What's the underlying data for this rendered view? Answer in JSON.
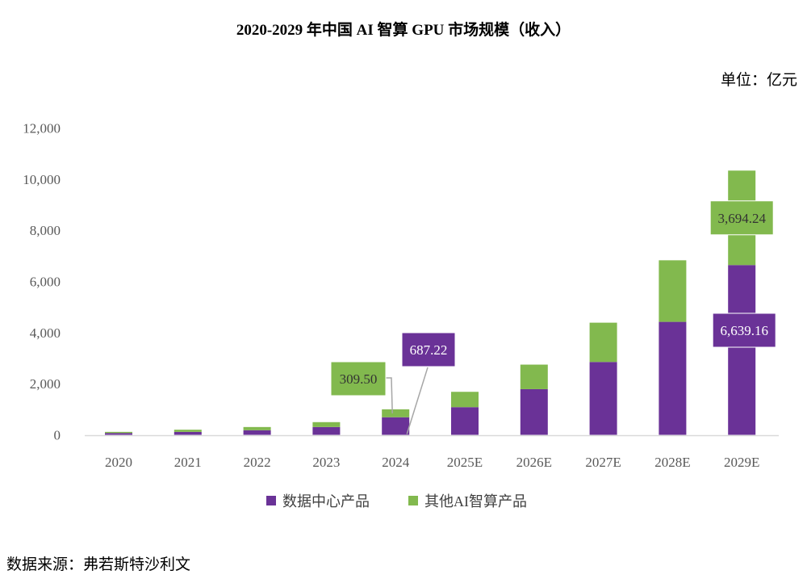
{
  "title": "2020-2029 年中国 AI 智算 GPU 市场规模（收入）",
  "unit": "单位：亿元",
  "source": "数据来源：弗若斯特沙利文",
  "chart_data": {
    "type": "bar",
    "stacked": true,
    "categories": [
      "2020",
      "2021",
      "2022",
      "2023",
      "2024",
      "2025E",
      "2026E",
      "2027E",
      "2028E",
      "2029E"
    ],
    "series": [
      {
        "name": "数据中心产品",
        "color": "#6A3297",
        "values": [
          70,
          115,
          180,
          306,
          687.22,
          1082,
          1786,
          2850,
          4418,
          6639.16
        ]
      },
      {
        "name": "其他AI智算产品",
        "color": "#82B94E",
        "values": [
          45,
          85,
          125,
          190,
          309.5,
          600,
          960,
          1536,
          2408,
          3694.24
        ]
      }
    ],
    "ylim": [
      0,
      12000
    ],
    "yticks": [
      "0",
      "2,000",
      "4,000",
      "6,000",
      "8,000",
      "10,000",
      "12,000"
    ],
    "grid": false,
    "legend": "bottom",
    "data_labels": [
      {
        "category": "2024",
        "series": 1,
        "text": "309.50"
      },
      {
        "category": "2024",
        "series": 0,
        "text": "687.22"
      },
      {
        "category": "2029E",
        "series": 1,
        "text": "3,694.24"
      },
      {
        "category": "2029E",
        "series": 0,
        "text": "6,639.16"
      }
    ]
  }
}
